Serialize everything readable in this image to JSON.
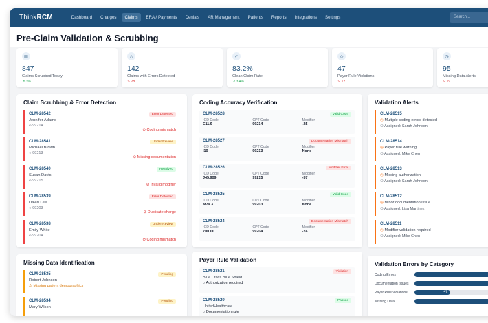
{
  "app": {
    "logo_prefix": "Think",
    "logo_bold": "RCM"
  },
  "nav": [
    "Dashboard",
    "Charges",
    "Claims",
    "ERA / Payments",
    "Denials",
    "AR Management",
    "Patients",
    "Reports",
    "Integrations",
    "Settings"
  ],
  "nav_active": "Claims",
  "search": {
    "placeholder": "Search..."
  },
  "page": {
    "title": "Pre-Claim Validation & Scrubbing"
  },
  "stats": [
    {
      "icon": "document-check-icon",
      "value": "847",
      "label": "Claims Scrubbed Today",
      "change": "↗ 3%",
      "dir": "up"
    },
    {
      "icon": "warning-triangle-icon",
      "value": "142",
      "label": "Claims with Errors Detected",
      "change": "↘ 28",
      "dir": "down"
    },
    {
      "icon": "check-circle-icon",
      "value": "83.2%",
      "label": "Clean Claim Rate",
      "change": "↗ 3.4%",
      "dir": "up"
    },
    {
      "icon": "shield-icon",
      "value": "47",
      "label": "Payer Rule Violations",
      "change": "↘ 12",
      "dir": "down"
    },
    {
      "icon": "clock-icon",
      "value": "95",
      "label": "Missing Data Alerts",
      "change": "↘ 19",
      "dir": "down"
    }
  ],
  "scrubbing": {
    "title": "Claim Scrubbing & Error Detection",
    "items": [
      {
        "claim": "CLM-28542",
        "name": "Jennifer Adams",
        "code": "99214",
        "status": "Error Detected",
        "tone": "red",
        "issue": "Coding mismatch"
      },
      {
        "claim": "CLM-28541",
        "name": "Michael Brown",
        "code": "99213",
        "status": "Under Review",
        "tone": "yellow",
        "issue": "Missing documentation"
      },
      {
        "claim": "CLM-28540",
        "name": "Susan Davis",
        "code": "99215",
        "status": "Resolved",
        "tone": "green",
        "issue": "Invalid modifier"
      },
      {
        "claim": "CLM-28539",
        "name": "David Lee",
        "code": "99203",
        "status": "Error Detected",
        "tone": "red",
        "issue": "Duplicate charge"
      },
      {
        "claim": "CLM-28538",
        "name": "Emily White",
        "code": "99204",
        "status": "Under Review",
        "tone": "yellow",
        "issue": "Coding mismatch"
      }
    ]
  },
  "coding": {
    "title": "Coding Accuracy Verification",
    "labels": {
      "icd": "ICD Code",
      "cpt": "CPT Code",
      "mod": "Modifier"
    },
    "items": [
      {
        "claim": "CLM-28528",
        "status": "Valid Code",
        "tone": "green",
        "icd": "E11.9",
        "cpt": "99214",
        "mod": "-25"
      },
      {
        "claim": "CLM-28527",
        "status": "Documentation Mismatch",
        "tone": "red",
        "icd": "I10",
        "cpt": "99213",
        "mod": "None"
      },
      {
        "claim": "CLM-28526",
        "status": "Modifier Error",
        "tone": "red",
        "icd": "J45.909",
        "cpt": "99215",
        "mod": "-57"
      },
      {
        "claim": "CLM-28525",
        "status": "Valid Code",
        "tone": "green",
        "icd": "M79.3",
        "cpt": "99203",
        "mod": "None"
      },
      {
        "claim": "CLM-28524",
        "status": "Documentation Mismatch",
        "tone": "red",
        "icd": "Z00.00",
        "cpt": "99204",
        "mod": "-24"
      }
    ]
  },
  "alerts": {
    "title": "Validation Alerts",
    "items": [
      {
        "claim": "CLM-28515",
        "msg": "Multiple coding errors detected",
        "assigned": "Assigned: Sarah Johnson"
      },
      {
        "claim": "CLM-28514",
        "msg": "Payer rule warning",
        "assigned": "Assigned: Mike Chen"
      },
      {
        "claim": "CLM-28513",
        "msg": "Missing authorization",
        "assigned": "Assigned: Sarah Johnson"
      },
      {
        "claim": "CLM-28512",
        "msg": "Minor documentation issue",
        "assigned": "Assigned: Lisa Martinez"
      },
      {
        "claim": "CLM-28511",
        "msg": "Modifier validation required",
        "assigned": "Assigned: Mike Chen"
      }
    ]
  },
  "missing": {
    "title": "Missing Data Identification",
    "items": [
      {
        "claim": "CLM-28535",
        "name": "Robert Johnson",
        "status": "Pending",
        "issue": "Missing patient demographics"
      },
      {
        "claim": "CLM-28534",
        "name": "Mary Wilson",
        "status": "Pending",
        "issue": ""
      }
    ]
  },
  "payer": {
    "title": "Payer Rule Validation",
    "items": [
      {
        "claim": "CLM-28521",
        "payer": "Blue Cross Blue Shield",
        "status": "Violation",
        "tone": "red",
        "rule": "Authorization required"
      },
      {
        "claim": "CLM-28520",
        "payer": "UnitedHealthcare",
        "status": "Passed",
        "tone": "green",
        "rule": "Documentation rule"
      }
    ]
  },
  "errors_by_category": {
    "title": "Validation Errors by Category",
    "bars": [
      {
        "label": "Coding Errors",
        "value": null,
        "fraction": 1.0,
        "display": ""
      },
      {
        "label": "Documentation Issues",
        "value": null,
        "fraction": 1.0,
        "display": ""
      },
      {
        "label": "Payer Rule Violations",
        "value": 47,
        "fraction": 0.47,
        "display": "47"
      },
      {
        "label": "Missing Data",
        "value": null,
        "fraction": 1.0,
        "display": ""
      }
    ]
  }
}
